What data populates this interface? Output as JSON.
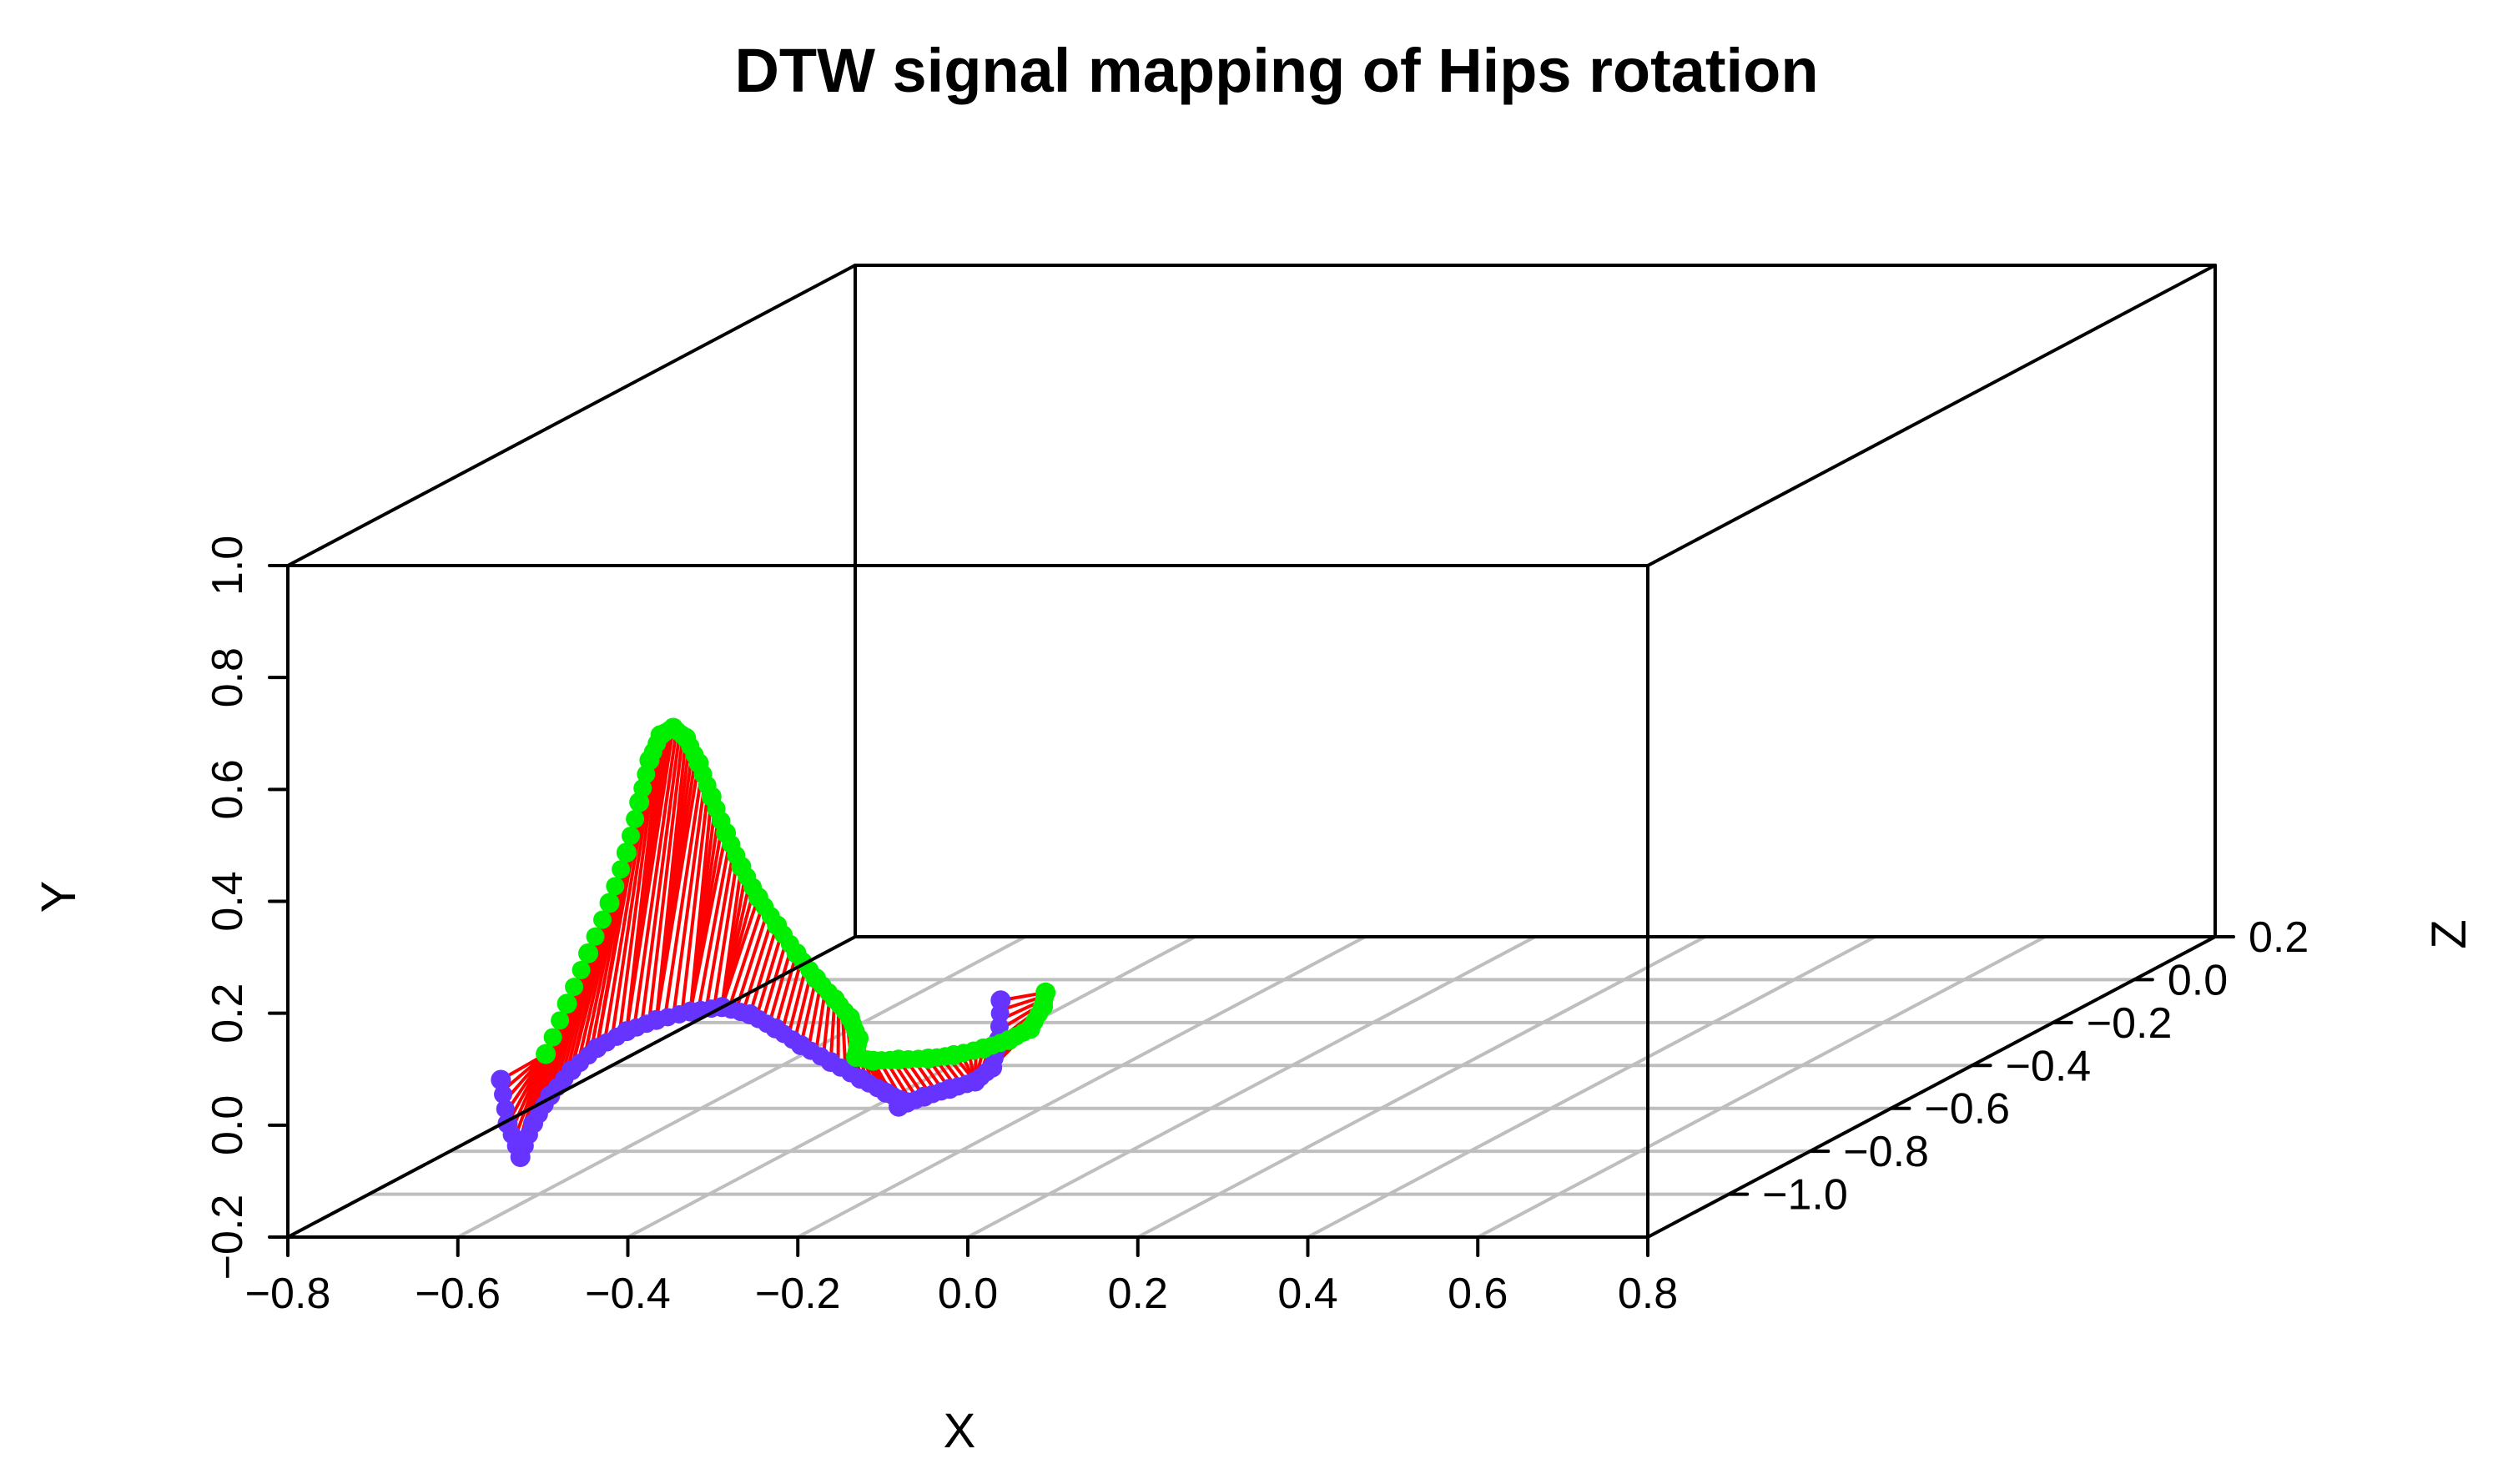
{
  "chart_data": {
    "type": "scatter",
    "dimensions": 3,
    "title": "DTW signal mapping of Hips rotation",
    "xlabel": "X",
    "ylabel": "Y",
    "zlabel": "Z",
    "xlim": [
      -0.8,
      0.8
    ],
    "ylim": [
      -0.2,
      1.0
    ],
    "zlim": [
      -1.2,
      0.2
    ],
    "x_ticks": [
      "−0.8",
      "−0.6",
      "−0.4",
      "−0.2",
      "0.0",
      "0.2",
      "0.4",
      "0.6",
      "0.8"
    ],
    "y_ticks": [
      "−0.2",
      "0.0",
      "0.2",
      "0.4",
      "0.6",
      "0.8",
      "1.0"
    ],
    "z_ticks": [
      "−1.0",
      "−0.8",
      "−0.6",
      "−0.4",
      "−0.2",
      "0.0",
      "0.2"
    ],
    "grid": "floor",
    "box": true,
    "colors": {
      "query": "#00ee00",
      "reference": "#6633ff",
      "mapping": "#ff0000",
      "box": "#000000",
      "grid": "#bebebe"
    },
    "series": [
      {
        "role": "query",
        "color": "#00ee00",
        "points": [
          [
            -0.58,
            0.06,
            -1.025
          ],
          [
            -0.555,
            0.15,
            -1.025
          ],
          [
            -0.53,
            0.24,
            -1.025
          ],
          [
            -0.505,
            0.33,
            -1.025
          ],
          [
            -0.485,
            0.42,
            -1.025
          ],
          [
            -0.47,
            0.51,
            -1.025
          ],
          [
            -0.458,
            0.585,
            -1.025
          ],
          [
            -0.445,
            0.63,
            -1.025
          ],
          [
            -0.43,
            0.643,
            -1.025
          ],
          [
            -0.415,
            0.625,
            -1.025
          ],
          [
            -0.4,
            0.58,
            -1.025
          ],
          [
            -0.385,
            0.52,
            -1.025
          ],
          [
            -0.368,
            0.455,
            -1.025
          ],
          [
            -0.35,
            0.395,
            -1.025
          ],
          [
            -0.33,
            0.34,
            -1.025
          ],
          [
            -0.308,
            0.29,
            -1.025
          ],
          [
            -0.285,
            0.24,
            -1.025
          ],
          [
            -0.262,
            0.195,
            -1.025
          ],
          [
            -0.24,
            0.158,
            -1.025
          ],
          [
            -0.222,
            0.125,
            -1.025
          ],
          [
            -0.212,
            0.088,
            -1.025
          ],
          [
            -0.215,
            0.055,
            -1.025
          ],
          [
            -0.195,
            0.048,
            -1.025
          ],
          [
            -0.165,
            0.05,
            -1.025
          ],
          [
            -0.13,
            0.052,
            -1.025
          ],
          [
            -0.1,
            0.058,
            -1.025
          ],
          [
            -0.065,
            0.07,
            -1.025
          ],
          [
            -0.035,
            0.085,
            -1.025
          ],
          [
            -0.01,
            0.105,
            -1.025
          ],
          [
            0.005,
            0.145,
            -1.025
          ],
          [
            0.008,
            0.17,
            -1.025
          ]
        ]
      },
      {
        "role": "reference",
        "color": "#6633ff",
        "points": [
          [
            -0.578,
            0.058,
            -1.14
          ],
          [
            -0.57,
            -0.02,
            -1.14
          ],
          [
            -0.555,
            -0.08,
            -1.14
          ],
          [
            -0.54,
            -0.02,
            -1.14
          ],
          [
            -0.52,
            0.03,
            -1.14
          ],
          [
            -0.495,
            0.075,
            -1.14
          ],
          [
            -0.465,
            0.115,
            -1.14
          ],
          [
            -0.43,
            0.145,
            -1.14
          ],
          [
            -0.395,
            0.165,
            -1.14
          ],
          [
            -0.355,
            0.18,
            -1.14
          ],
          [
            -0.318,
            0.188,
            -1.14
          ],
          [
            -0.285,
            0.175,
            -1.14
          ],
          [
            -0.255,
            0.15,
            -1.14
          ],
          [
            -0.225,
            0.12,
            -1.14
          ],
          [
            -0.19,
            0.09,
            -1.14
          ],
          [
            -0.155,
            0.06,
            -1.14
          ],
          [
            -0.125,
            0.035,
            -1.14
          ],
          [
            -0.1,
            0.018,
            -1.14
          ],
          [
            -0.11,
            0.01,
            -1.14
          ],
          [
            -0.08,
            0.028,
            -1.14
          ],
          [
            -0.05,
            0.042,
            -1.14
          ],
          [
            -0.02,
            0.055,
            -1.14
          ],
          [
            0.0,
            0.08,
            -1.14
          ],
          [
            0.008,
            0.13,
            -1.14
          ],
          [
            0.01,
            0.2,
            -1.14
          ]
        ]
      }
    ],
    "mapping_pairs": [
      [
        0,
        0
      ],
      [
        0,
        1
      ],
      [
        0,
        2
      ],
      [
        1,
        3
      ],
      [
        2,
        4
      ],
      [
        3,
        5
      ],
      [
        4,
        5
      ],
      [
        5,
        6
      ],
      [
        6,
        6
      ],
      [
        7,
        7
      ],
      [
        8,
        7
      ],
      [
        9,
        8
      ],
      [
        10,
        8
      ],
      [
        11,
        9
      ],
      [
        12,
        9
      ],
      [
        13,
        10
      ],
      [
        14,
        10
      ],
      [
        15,
        11
      ],
      [
        16,
        12
      ],
      [
        17,
        13
      ],
      [
        18,
        14
      ],
      [
        19,
        15
      ],
      [
        20,
        16
      ],
      [
        21,
        17
      ],
      [
        22,
        18
      ],
      [
        23,
        19
      ],
      [
        24,
        20
      ],
      [
        25,
        21
      ],
      [
        26,
        21
      ],
      [
        27,
        22
      ],
      [
        28,
        22
      ],
      [
        29,
        23
      ],
      [
        30,
        24
      ]
    ]
  }
}
